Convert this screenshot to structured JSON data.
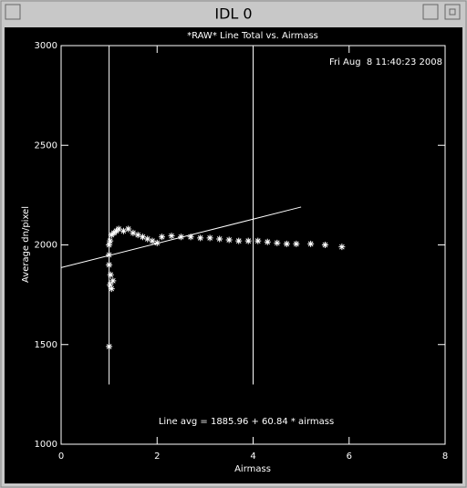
{
  "window_title": "IDL 0",
  "chart_data": {
    "type": "scatter",
    "title": "*RAW* Line Total vs. Airmass",
    "xlabel": "Airmass",
    "ylabel": "Average dn/pixel",
    "date_label": "Fri Aug  8 11:40:23 2008",
    "annotation": "Line avg = 1885.96 + 60.84 * airmass",
    "color": "#ffffff",
    "xlim": [
      0,
      8
    ],
    "xticks": [
      0,
      2,
      4,
      6,
      8
    ],
    "ylim": [
      1000,
      3000
    ],
    "yticks": [
      1000,
      1500,
      2000,
      2500,
      3000
    ],
    "x": [
      1.0,
      1.02,
      1.05,
      1.08,
      1.03,
      1.0,
      1.0,
      1.0,
      1.02,
      1.05,
      1.1,
      1.15,
      1.2,
      1.3,
      1.4,
      1.5,
      1.6,
      1.7,
      1.8,
      1.9,
      2.0,
      2.1,
      2.3,
      2.5,
      2.7,
      2.9,
      3.1,
      3.3,
      3.5,
      3.7,
      3.9,
      4.1,
      4.3,
      4.5,
      4.7,
      4.9,
      5.2,
      5.5,
      5.85
    ],
    "values": [
      1490,
      1800,
      1780,
      1820,
      1850,
      1900,
      1950,
      2000,
      2020,
      2050,
      2060,
      2070,
      2080,
      2070,
      2080,
      2060,
      2050,
      2040,
      2030,
      2020,
      2010,
      2040,
      2045,
      2040,
      2040,
      2035,
      2035,
      2030,
      2025,
      2020,
      2020,
      2020,
      2015,
      2010,
      2005,
      2005,
      2005,
      2000,
      1990
    ],
    "fit_line": {
      "x": [
        0,
        5
      ],
      "values": [
        1885.96,
        2190.16
      ]
    },
    "vlines": [
      {
        "x": 1,
        "ylim": [
          1300,
          3000
        ]
      },
      {
        "x": 4,
        "ylim": [
          1300,
          3000
        ]
      }
    ]
  }
}
